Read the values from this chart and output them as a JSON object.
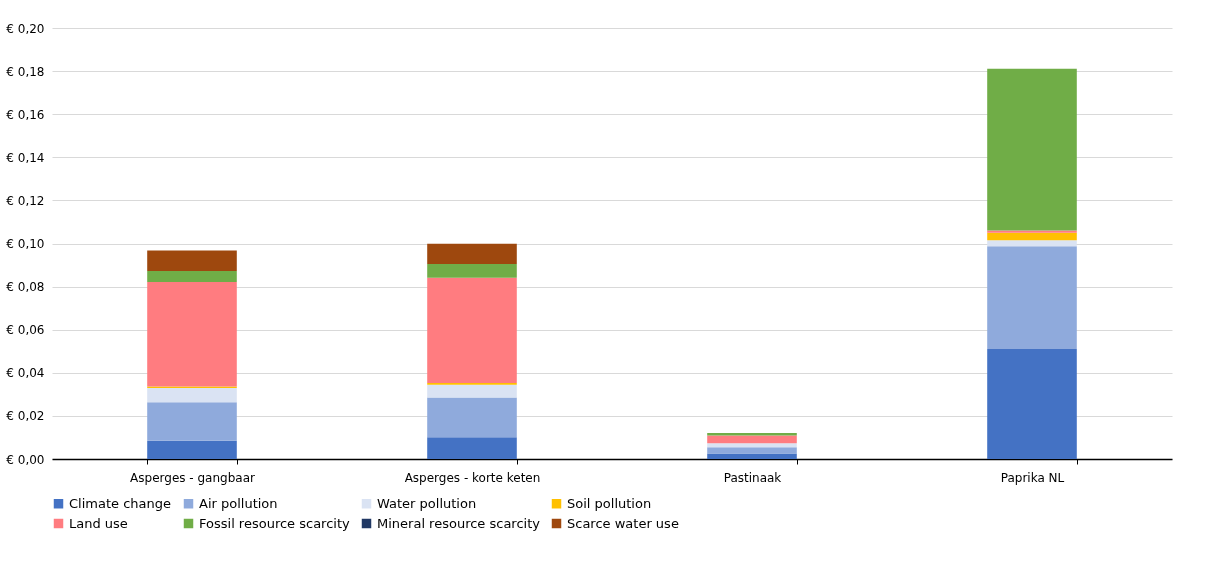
{
  "chart_data": {
    "type": "bar",
    "stacked": true,
    "categories": [
      "Asperges - gangbaar",
      "Asperges - korte keten",
      "Pastinaak",
      "Paprika NL"
    ],
    "series": [
      {
        "name": "Climate change",
        "color": "#4472c4",
        "values": [
          0.0085,
          0.0101,
          0.0026,
          0.051
        ]
      },
      {
        "name": "Air pollution",
        "color": "#8faadc",
        "values": [
          0.0178,
          0.0184,
          0.0028,
          0.0477
        ]
      },
      {
        "name": "Water pollution",
        "color": "#dae3f3",
        "values": [
          0.0067,
          0.006,
          0.0019,
          0.0028
        ]
      },
      {
        "name": "Soil pollution",
        "color": "#ffc000",
        "values": [
          0.0006,
          0.0008,
          null,
          0.0035
        ]
      },
      {
        "name": "Land use",
        "color": "#ff7c80",
        "values": [
          0.0485,
          0.0488,
          0.0036,
          0.001
        ]
      },
      {
        "name": "Fossil resource scarcity",
        "color": "#70ad47",
        "values": [
          0.0051,
          0.0064,
          0.0012,
          0.0751
        ]
      },
      {
        "name": "Mineral resource scarcity",
        "color": "#203864",
        "values": [
          0,
          0,
          0,
          0
        ]
      },
      {
        "name": "Scarce water use",
        "color": "#9e480e",
        "values": [
          0.0096,
          0.0094,
          0,
          0
        ]
      }
    ],
    "ylim": [
      0,
      0.2
    ],
    "yticks": [
      {
        "value": 0,
        "label": "€ 0,00"
      },
      {
        "value": 0.02,
        "label": "€ 0,02"
      },
      {
        "value": 0.04,
        "label": "€ 0,04"
      },
      {
        "value": 0.06,
        "label": "€ 0,06"
      },
      {
        "value": 0.08,
        "label": "€ 0,08"
      },
      {
        "value": 0.1,
        "label": "€ 0,10"
      },
      {
        "value": 0.12,
        "label": "€ 0,12"
      },
      {
        "value": 0.14,
        "label": "€ 0,14"
      },
      {
        "value": 0.16,
        "label": "€ 0,16"
      },
      {
        "value": 0.18,
        "label": "€ 0,18"
      },
      {
        "value": 0.2,
        "label": "€ 0,20"
      }
    ],
    "grid": "y",
    "legend": "bottom"
  }
}
